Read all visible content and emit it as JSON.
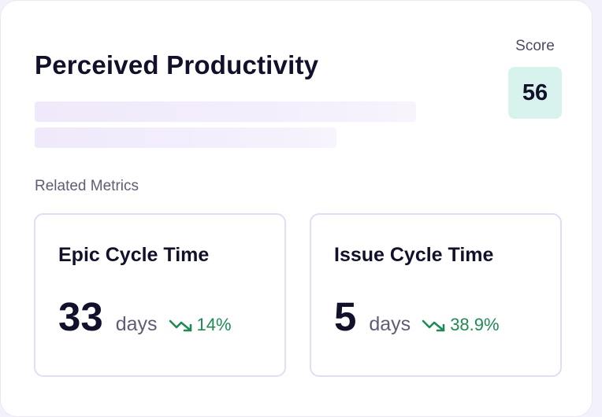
{
  "card": {
    "title": "Perceived Productivity",
    "score_label": "Score",
    "score_value": "56",
    "related_label": "Related Metrics"
  },
  "metrics": [
    {
      "title": "Epic Cycle Time",
      "value": "33",
      "unit": "days",
      "trend": "14%",
      "trend_icon": "trending-down-icon"
    },
    {
      "title": "Issue Cycle Time",
      "value": "5",
      "unit": "days",
      "trend": "38.9%",
      "trend_icon": "trending-down-icon"
    }
  ],
  "colors": {
    "score_bg": "#d8f3ee",
    "trend_green": "#1f8a55",
    "card_border": "#e4dcf3",
    "skeleton": "#efe9fb"
  }
}
